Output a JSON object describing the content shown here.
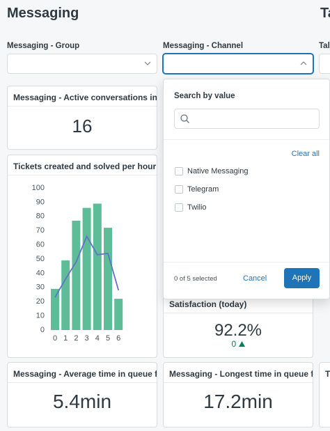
{
  "header": {
    "title": "Messaging",
    "next_title": "Ta"
  },
  "filters": [
    {
      "label": "Messaging - Group"
    },
    {
      "label": "Messaging - Channel"
    },
    {
      "label": "Tall"
    }
  ],
  "dropdown": {
    "heading": "Search by value",
    "clear": "Clear all",
    "options": [
      "Native Messaging",
      "Telegram",
      "Twilio"
    ],
    "status": "0 of 5 selected",
    "cancel": "Cancel",
    "apply": "Apply"
  },
  "cards": [
    {
      "title": "Messaging - Active conversations in q...",
      "value": "16"
    },
    {
      "title": "Satisfaction (today)",
      "value": "92.2%",
      "change": "0"
    },
    {
      "title": "Messaging - Average time in queue for...",
      "value": "5.4min"
    },
    {
      "title": "Messaging - Longest time in queue for...",
      "value": "17.2min"
    },
    {
      "title": "Ta"
    }
  ],
  "chart_data": {
    "type": "bar",
    "title": "Tickets created and solved per hour",
    "categories": [
      "0",
      "1",
      "2",
      "3",
      "4",
      "5",
      "6"
    ],
    "series": [
      {
        "type": "bar",
        "color": "#5cbd98",
        "values": [
          29,
          49,
          77,
          86,
          89,
          72,
          22
        ]
      },
      {
        "type": "line",
        "color": "#6670c8",
        "values": [
          23,
          36,
          48,
          66,
          53,
          54,
          28
        ]
      }
    ],
    "ylim": [
      0,
      100
    ],
    "yticks": [
      0,
      10,
      20,
      30,
      40,
      50,
      60,
      70,
      80,
      90,
      100
    ]
  }
}
